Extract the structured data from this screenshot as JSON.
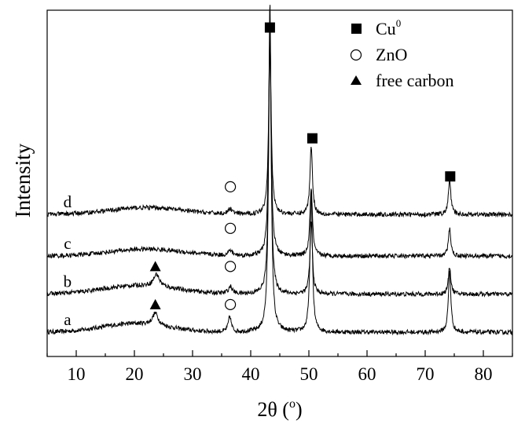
{
  "chart_data": {
    "type": "line",
    "title": "",
    "xlabel": "2θ (°)",
    "xlabel_parts": {
      "base": "2θ (",
      "sup": "o",
      "end": ")"
    },
    "ylabel": "Intensity",
    "xlim": [
      5,
      85
    ],
    "ylim": [
      0,
      100
    ],
    "xticks": [
      10,
      20,
      30,
      40,
      50,
      60,
      70,
      80
    ],
    "xtick_labels": [
      "10",
      "20",
      "30",
      "40",
      "50",
      "60",
      "70",
      "80"
    ],
    "y_ticks_shown": false,
    "grid": false,
    "legend": {
      "position": "top-right",
      "entries": [
        {
          "marker": "filled-square",
          "label": "Cu",
          "sup": "0"
        },
        {
          "marker": "open-circle",
          "label": "ZnO",
          "sup": ""
        },
        {
          "marker": "filled-triangle",
          "label": "free carbon",
          "sup": ""
        }
      ]
    },
    "series": [
      {
        "label": "a",
        "baseline": 7,
        "label_x": 8.5,
        "hump": {
          "center": 20,
          "width": 8,
          "height": 2.5
        },
        "peaks": [
          {
            "x": 23.6,
            "height": 3.5,
            "width": 0.6
          },
          {
            "x": 36.4,
            "height": 4.5,
            "width": 0.3
          },
          {
            "x": 43.3,
            "height": 96,
            "width": 0.25
          },
          {
            "x": 50.4,
            "height": 40,
            "width": 0.25
          },
          {
            "x": 74.2,
            "height": 18,
            "width": 0.25
          }
        ],
        "markers": [
          {
            "x": 23.6,
            "y": 15,
            "symbol": "filled-triangle"
          },
          {
            "x": 36.5,
            "y": 15,
            "symbol": "open-circle"
          }
        ]
      },
      {
        "label": "b",
        "baseline": 18,
        "label_x": 8.5,
        "hump": {
          "center": 21,
          "width": 9,
          "height": 2.5
        },
        "peaks": [
          {
            "x": 23.8,
            "height": 3.5,
            "width": 0.6
          },
          {
            "x": 36.5,
            "height": 2,
            "width": 0.4
          },
          {
            "x": 43.3,
            "height": 75,
            "width": 0.25
          },
          {
            "x": 50.4,
            "height": 21,
            "width": 0.25
          },
          {
            "x": 74.2,
            "height": 8,
            "width": 0.25
          }
        ],
        "markers": [
          {
            "x": 23.6,
            "y": 26,
            "symbol": "filled-triangle"
          },
          {
            "x": 36.5,
            "y": 26,
            "symbol": "open-circle"
          }
        ]
      },
      {
        "label": "c",
        "baseline": 29,
        "label_x": 8.5,
        "hump": {
          "center": 22,
          "width": 9,
          "height": 2
        },
        "peaks": [
          {
            "x": 36.5,
            "height": 1.5,
            "width": 0.4
          },
          {
            "x": 43.3,
            "height": 65,
            "width": 0.25
          },
          {
            "x": 50.4,
            "height": 20,
            "width": 0.25
          },
          {
            "x": 74.2,
            "height": 8,
            "width": 0.25
          }
        ],
        "markers": [
          {
            "x": 36.5,
            "y": 37,
            "symbol": "open-circle"
          }
        ]
      },
      {
        "label": "d",
        "baseline": 41,
        "label_x": 8.5,
        "hump": {
          "center": 22,
          "width": 9,
          "height": 2
        },
        "peaks": [
          {
            "x": 36.5,
            "height": 1.5,
            "width": 0.4
          },
          {
            "x": 43.3,
            "height": 52,
            "width": 0.25
          },
          {
            "x": 50.4,
            "height": 20,
            "width": 0.25
          },
          {
            "x": 74.2,
            "height": 10,
            "width": 0.25
          }
        ],
        "markers": [
          {
            "x": 36.5,
            "y": 49,
            "symbol": "open-circle"
          },
          {
            "x": 43.3,
            "y": 95,
            "symbol": "filled-square"
          },
          {
            "x": 50.6,
            "y": 63,
            "symbol": "filled-square"
          },
          {
            "x": 74.3,
            "y": 52,
            "symbol": "filled-square"
          }
        ]
      }
    ]
  }
}
